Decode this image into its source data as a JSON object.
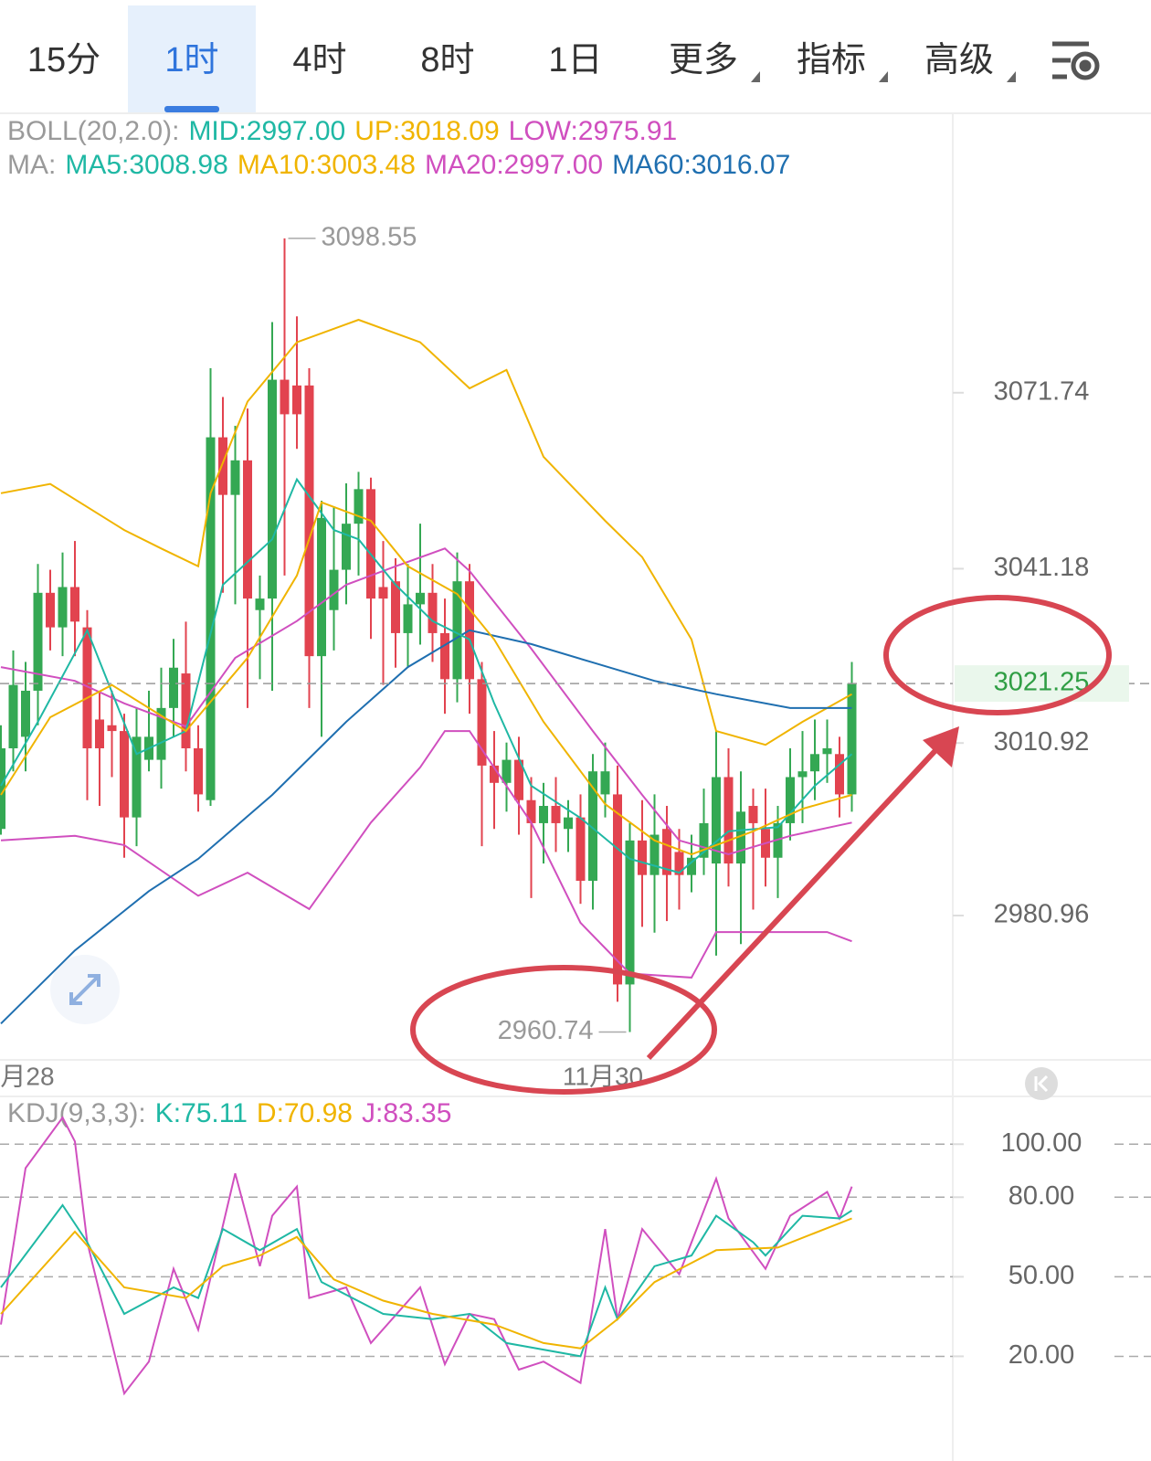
{
  "tabs": {
    "items": [
      "15分",
      "1时",
      "4时",
      "8时",
      "1日",
      "更多",
      "指标",
      "高级"
    ],
    "selected": 1
  },
  "chart_data": [
    {
      "type": "candlestick",
      "legend_rows": [
        [
          {
            "text": "BOLL(20,2.0):",
            "color": "#9a9a9a"
          },
          {
            "text": "MID:2997.00",
            "color": "#1fb8a4"
          },
          {
            "text": "UP:3018.09",
            "color": "#f0b400"
          },
          {
            "text": "LOW:2975.91",
            "color": "#d04fbf"
          }
        ],
        [
          {
            "text": "MA:",
            "color": "#9a9a9a"
          },
          {
            "text": "MA5:3008.98",
            "color": "#1fb8a4"
          },
          {
            "text": "MA10:3003.48",
            "color": "#f0b400"
          },
          {
            "text": "MA20:2997.00",
            "color": "#d04fbf"
          },
          {
            "text": "MA60:3016.07",
            "color": "#1f6fb0"
          }
        ]
      ],
      "up_color": "#34a853",
      "down_color": "#e2434f",
      "ylim": [
        2955.9,
        3120.1
      ],
      "yticks": [
        3071.74,
        3041.18,
        3010.92,
        2980.96
      ],
      "last_price": 3021.25,
      "last_color": "#2f9e44",
      "max_label": 3098.55,
      "min_label": 2960.74,
      "date_labels": [
        "月28",
        "11月30"
      ],
      "ohlc": [
        [
          2996,
          3014,
          2995,
          3010
        ],
        [
          3010,
          3027,
          3006,
          3021
        ],
        [
          3012,
          3025,
          3006,
          3020
        ],
        [
          3020,
          3042,
          3014,
          3037
        ],
        [
          3037,
          3041,
          3027,
          3031
        ],
        [
          3031,
          3044,
          3026,
          3038
        ],
        [
          3038,
          3046,
          3026,
          3032
        ],
        [
          3031,
          3034,
          3001,
          3010
        ],
        [
          3015,
          3020,
          3000,
          3010
        ],
        [
          3014,
          3020,
          3005,
          3013
        ],
        [
          3013,
          3016,
          2991,
          2998
        ],
        [
          2998,
          3017,
          2993,
          3012
        ],
        [
          3008,
          3020,
          3006,
          3012
        ],
        [
          3008,
          3024,
          3003,
          3017
        ],
        [
          3017,
          3029,
          3012,
          3024
        ],
        [
          3023,
          3032,
          3006,
          3010
        ],
        [
          3010,
          3014,
          2999,
          3002
        ],
        [
          3001,
          3076,
          3000,
          3064
        ],
        [
          3064,
          3071,
          3037,
          3054
        ],
        [
          3054,
          3066,
          3035,
          3060
        ],
        [
          3060,
          3069,
          3017,
          3036
        ],
        [
          3034,
          3040,
          3022,
          3036
        ],
        [
          3036,
          3084,
          3020,
          3074
        ],
        [
          3074,
          3098.55,
          3040,
          3068
        ],
        [
          3073,
          3085,
          3062,
          3068
        ],
        [
          3073,
          3076,
          3017,
          3026
        ],
        [
          3026,
          3053,
          3012,
          3050
        ],
        [
          3034,
          3052,
          3027,
          3041
        ],
        [
          3041,
          3056,
          3035,
          3049
        ],
        [
          3049,
          3058,
          3040,
          3055
        ],
        [
          3055,
          3057,
          3029,
          3036
        ],
        [
          3038,
          3046,
          3021,
          3036
        ],
        [
          3039,
          3043,
          3024,
          3030
        ],
        [
          3030,
          3042,
          3024,
          3035
        ],
        [
          3035,
          3049,
          3028,
          3037
        ],
        [
          3037,
          3042,
          3025,
          3030
        ],
        [
          3030,
          3036,
          3016,
          3022
        ],
        [
          3022,
          3044,
          3018,
          3039
        ],
        [
          3039,
          3042,
          3016,
          3022
        ],
        [
          3022,
          3025,
          2993,
          3007
        ],
        [
          3007,
          3013,
          2996,
          3004
        ],
        [
          3004,
          3011,
          2999,
          3008
        ],
        [
          3008,
          3012,
          2995,
          3001
        ],
        [
          3001,
          3005,
          2984,
          2997
        ],
        [
          2997,
          3004,
          2990,
          3000
        ],
        [
          3000,
          3005,
          2992,
          2997
        ],
        [
          2996,
          3001,
          2992,
          2998
        ],
        [
          2998,
          3002,
          2983,
          2987
        ],
        [
          2987,
          3009,
          2982,
          3006
        ],
        [
          3002,
          3011,
          2998,
          3006
        ],
        [
          3002,
          3007,
          2966,
          2969
        ],
        [
          2969,
          2997,
          2960.74,
          2994
        ],
        [
          2994,
          3001,
          2979,
          2988
        ],
        [
          2988,
          3002,
          2978,
          2995
        ],
        [
          2996,
          3000,
          2980,
          2988
        ],
        [
          2992,
          2996,
          2982,
          2988
        ],
        [
          2988,
          2995,
          2985,
          2991
        ],
        [
          2991,
          3003,
          2988,
          2997
        ],
        [
          2990,
          3013,
          2974,
          3005
        ],
        [
          3005,
          3010,
          2986,
          2990
        ],
        [
          2990,
          3006,
          2976,
          2999
        ],
        [
          3000,
          3003,
          2982,
          2997
        ],
        [
          2996,
          3003,
          2986,
          2991
        ],
        [
          2991,
          3000,
          2984,
          2997
        ],
        [
          2997,
          3010,
          2994,
          3005
        ],
        [
          3005,
          3013,
          2997,
          3006
        ],
        [
          3006,
          3015,
          3001,
          3009
        ],
        [
          3009,
          3015,
          3004,
          3010
        ],
        [
          3009,
          3012,
          2998,
          3002
        ],
        [
          3002,
          3025,
          2999,
          3021.25
        ]
      ],
      "lines": [
        {
          "color": "#f0b400",
          "x": [
            0,
            4,
            10,
            13,
            16,
            17,
            20,
            24,
            29,
            34,
            38,
            41,
            44,
            49,
            52,
            56,
            58,
            62,
            65,
            69
          ],
          "values": [
            3054.3,
            3055.9,
            3047.9,
            3044.7,
            3041.6,
            3054.3,
            3070.2,
            3080.5,
            3084.4,
            3080.5,
            3072.5,
            3075.7,
            3060.6,
            3049.5,
            3043.2,
            3028.9,
            3013.0,
            3010.6,
            3014.6,
            3019.4
          ]
        },
        {
          "color": "#d04fbf",
          "x": [
            0,
            6,
            10,
            16,
            20,
            25,
            30,
            34,
            36,
            38,
            43,
            47,
            51,
            56,
            58,
            63,
            67,
            69
          ],
          "values": [
            2994.0,
            2994.8,
            2993.2,
            2984.4,
            2988.4,
            2982.1,
            2997.1,
            3006.7,
            3013.0,
            3013.0,
            2997.1,
            2979.7,
            2970.9,
            2970.2,
            2978.1,
            2978.1,
            2978.1,
            2976.5
          ]
        },
        {
          "color": "#d04fbf",
          "x": [
            0,
            6,
            10,
            15,
            19,
            24,
            28,
            32,
            36,
            38,
            43,
            48,
            52,
            55,
            59,
            64,
            69
          ],
          "values": [
            3024.1,
            3021.7,
            3017.8,
            3013.8,
            3025.7,
            3032.1,
            3038.4,
            3041.6,
            3044.7,
            3040.8,
            3027.3,
            3013.0,
            3001.9,
            2994.0,
            2991.6,
            2994.8,
            2997.1
          ]
        },
        {
          "color": "#1f6fb0",
          "x": [
            0,
            6,
            12,
            16,
            22,
            28,
            33,
            38,
            43,
            48,
            53,
            58,
            64,
            69
          ],
          "values": [
            2962.2,
            2974.9,
            2985.2,
            2990.8,
            3001.9,
            3014.6,
            3024.1,
            3030.5,
            3028.1,
            3024.9,
            3021.7,
            3019.4,
            3017.0,
            3017.0
          ]
        },
        {
          "color": "#1fb8a4",
          "x": [
            0,
            3,
            7,
            11,
            15,
            18,
            22,
            24,
            27,
            29,
            32,
            35,
            38,
            40,
            43,
            47,
            51,
            55,
            59,
            63,
            66,
            69
          ],
          "values": [
            3003.5,
            3014.6,
            3030.5,
            3009.0,
            3013.0,
            3038.4,
            3046.3,
            3056.7,
            3047.9,
            3046.3,
            3038.4,
            3032.1,
            3028.9,
            3017.8,
            3003.5,
            2997.9,
            2990.8,
            2988.4,
            2995.6,
            2996.3,
            3003.5,
            3009.0
          ]
        },
        {
          "color": "#f0b400",
          "x": [
            0,
            4,
            9,
            15,
            20,
            24,
            26,
            30,
            33,
            37,
            40,
            44,
            49,
            53,
            56,
            61,
            65,
            69
          ],
          "values": [
            3001.9,
            3015.4,
            3021.0,
            3013.0,
            3025.7,
            3040.0,
            3052.7,
            3049.5,
            3041.6,
            3036.8,
            3028.9,
            3014.6,
            3000.3,
            2994.0,
            2991.6,
            2995.6,
            2999.5,
            3001.9
          ]
        }
      ]
    },
    {
      "type": "line",
      "legend_rows": [
        [
          {
            "text": "KDJ(9,3,3):",
            "color": "#9a9a9a"
          },
          {
            "text": "K:75.11",
            "color": "#1fb8a4"
          },
          {
            "text": "D:70.98",
            "color": "#f0b400"
          },
          {
            "text": "J:83.35",
            "color": "#d04fbf"
          }
        ]
      ],
      "ylim": [
        -5,
        118
      ],
      "yticks": [
        {
          "value": 100,
          "label": "100.00"
        },
        {
          "value": 80,
          "label": "80.00"
        },
        {
          "value": 50,
          "label": "50.00"
        },
        {
          "value": 20,
          "label": "20.00"
        }
      ],
      "grid": "dashed",
      "lines": [
        {
          "color": "#d04fbf",
          "x": [
            0,
            2,
            5,
            6,
            7,
            10,
            12,
            14,
            16,
            19,
            21,
            22,
            24,
            25,
            28,
            30,
            34,
            36,
            38,
            40,
            42,
            44,
            47,
            49,
            50,
            52,
            55,
            58,
            59,
            62,
            64,
            67,
            68,
            69
          ],
          "values": [
            32,
            91,
            110,
            101,
            63,
            6,
            18,
            53,
            30,
            89,
            54,
            73,
            84,
            42,
            46,
            25,
            46,
            17,
            36,
            34,
            15,
            18,
            10,
            68,
            34,
            68,
            51,
            87,
            72,
            53,
            73,
            82,
            72,
            84
          ]
        },
        {
          "color": "#1fb8a4",
          "x": [
            0,
            5,
            7,
            10,
            14,
            16,
            18,
            21,
            24,
            26,
            31,
            35,
            38,
            41,
            47,
            49,
            50,
            53,
            56,
            58,
            61,
            62,
            65,
            68,
            69
          ],
          "values": [
            46,
            77,
            63,
            36,
            46,
            42,
            68,
            60,
            68,
            48,
            36,
            34,
            36,
            25,
            20,
            46,
            34,
            54,
            58,
            73,
            63,
            58,
            73,
            72,
            75
          ]
        },
        {
          "color": "#f0b400",
          "x": [
            0,
            6,
            10,
            15,
            18,
            21,
            24,
            27,
            31,
            35,
            40,
            44,
            47,
            50,
            53,
            58,
            63,
            69
          ],
          "values": [
            36,
            67,
            46,
            42,
            54,
            58,
            65,
            49,
            41,
            36,
            32,
            25,
            23,
            34,
            48,
            60,
            61,
            72
          ]
        }
      ]
    }
  ]
}
